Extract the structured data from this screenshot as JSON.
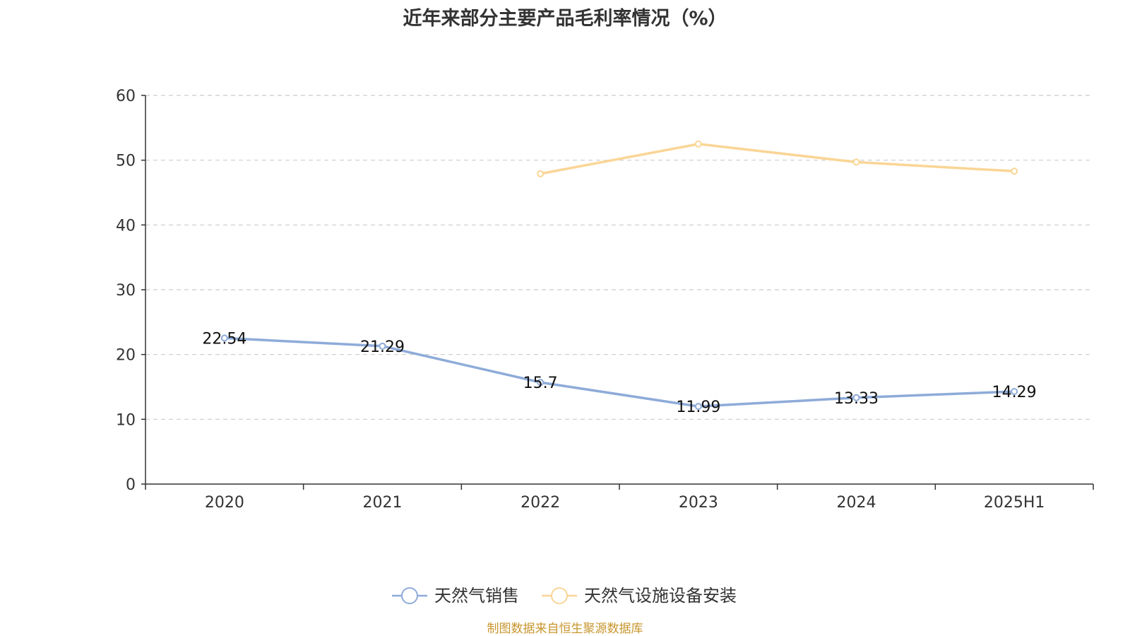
{
  "title": "近年来部分主要产品毛利率情况（%）",
  "source": "制图数据来自恒生聚源数据库",
  "chart_data": {
    "type": "line",
    "title": "近年来部分主要产品毛利率情况（%）",
    "categories": [
      "2020",
      "2021",
      "2022",
      "2023",
      "2024",
      "2025H1"
    ],
    "ylim": [
      0,
      60
    ],
    "yticks": [
      0,
      10,
      20,
      30,
      40,
      50,
      60
    ],
    "grid": true,
    "legend_position": "bottom",
    "series": [
      {
        "name": "天然气销售",
        "color": "#8eabd9",
        "values": [
          22.54,
          21.29,
          15.7,
          11.99,
          13.33,
          14.29
        ],
        "labels": [
          "22.54",
          "21.29",
          "15.7",
          "11.99",
          "13.33",
          "14.29"
        ],
        "show_labels": true
      },
      {
        "name": "天然气设施设备安装",
        "color": "#fad596",
        "values": [
          null,
          null,
          47.9,
          52.5,
          49.7,
          48.3
        ],
        "show_labels": false
      }
    ]
  }
}
